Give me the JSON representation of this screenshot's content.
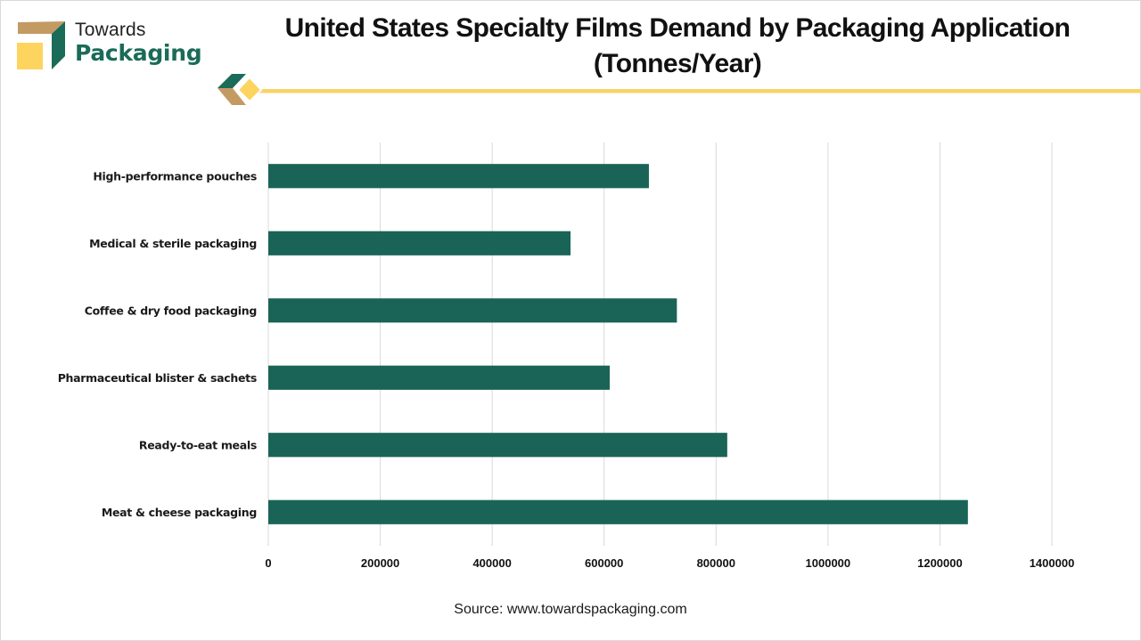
{
  "brand": {
    "line1": "Towards",
    "line2": "Packaging",
    "colors": {
      "green": "#1a6b58",
      "tan": "#c49a63",
      "yellow": "#fdd45e"
    }
  },
  "header": {
    "title_line1": "United States Specialty Films Demand by Packaging Application",
    "title_line2": "(Tonnes/Year)",
    "accent_line_color": "#f7d46a"
  },
  "source": "Source: www.towardspackaging.com",
  "chart_data": {
    "type": "bar",
    "orientation": "horizontal",
    "title": "United States Specialty Films Demand by Packaging Application (Tonnes/Year)",
    "xlabel": "",
    "ylabel": "",
    "categories": [
      "High-performance pouches",
      "Medical & sterile packaging",
      "Coffee & dry food packaging",
      "Pharmaceutical blister & sachets",
      "Ready-to-eat meals",
      "Meat & cheese packaging"
    ],
    "values": [
      680000,
      540000,
      730000,
      610000,
      820000,
      1250000
    ],
    "xlim": [
      0,
      1400000
    ],
    "xticks": [
      0,
      200000,
      400000,
      600000,
      800000,
      1000000,
      1200000,
      1400000
    ],
    "xtick_labels": [
      "0",
      "200000",
      "400000",
      "600000",
      "800000",
      "1000000",
      "1200000",
      "1400000"
    ],
    "grid": "vertical",
    "legend": "none",
    "bar_color": "#1a6457",
    "grid_color": "#d9d9d9"
  }
}
